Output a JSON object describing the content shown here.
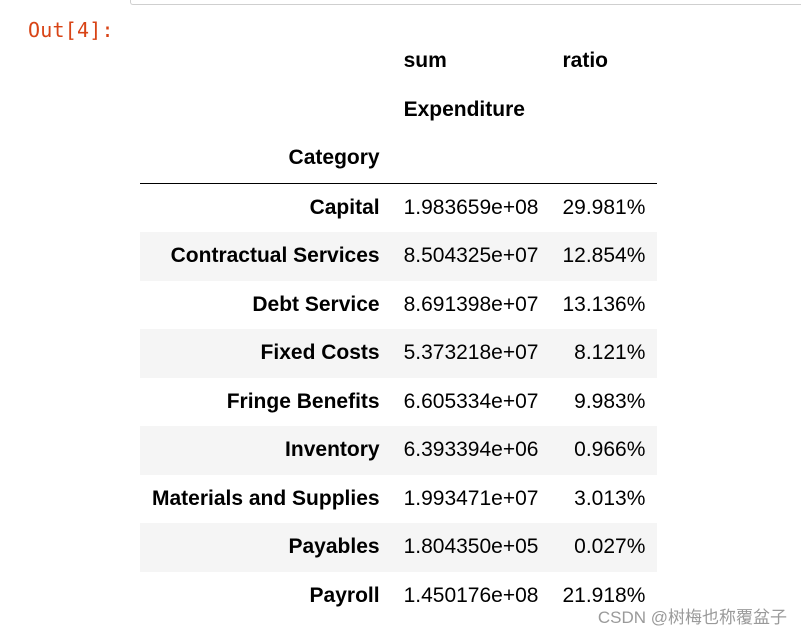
{
  "cell": {
    "prompt": "Out[4]:"
  },
  "dataframe": {
    "columns": [
      "sum",
      "ratio"
    ],
    "column_level_name": "Expenditure",
    "index_name": "Category",
    "rows": [
      {
        "index": "Capital",
        "sum": "1.983659e+08",
        "ratio": "29.981%"
      },
      {
        "index": "Contractual Services",
        "sum": "8.504325e+07",
        "ratio": "12.854%"
      },
      {
        "index": "Debt Service",
        "sum": "8.691398e+07",
        "ratio": "13.136%"
      },
      {
        "index": "Fixed Costs",
        "sum": "5.373218e+07",
        "ratio": "8.121%"
      },
      {
        "index": "Fringe Benefits",
        "sum": "6.605334e+07",
        "ratio": "9.983%"
      },
      {
        "index": "Inventory",
        "sum": "6.393394e+06",
        "ratio": "0.966%"
      },
      {
        "index": "Materials and Supplies",
        "sum": "1.993471e+07",
        "ratio": "3.013%"
      },
      {
        "index": "Payables",
        "sum": "1.804350e+05",
        "ratio": "0.027%"
      },
      {
        "index": "Payroll",
        "sum": "1.450176e+08",
        "ratio": "21.918%"
      }
    ]
  },
  "watermark": "CSDN @树梅也称覆盆子"
}
